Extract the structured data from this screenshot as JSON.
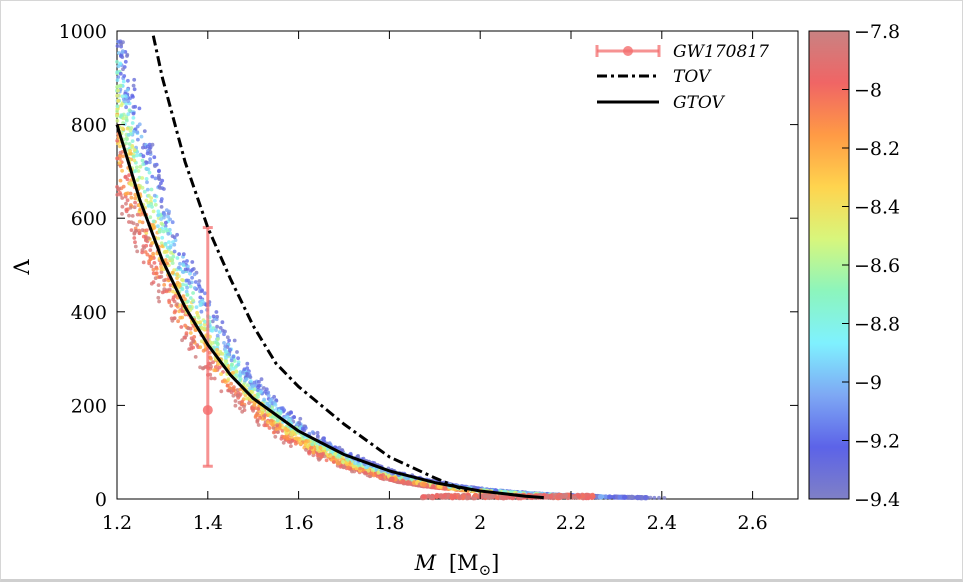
{
  "chart_data": {
    "type": "scatter",
    "title": "",
    "xlabel": "M [M⊙]",
    "xlabel_italic": "M",
    "xlabel_rest": "[M",
    "xlabel_close": "]",
    "xlabel_sub": "⊙",
    "ylabel": "Λ",
    "xlim": [
      1.2,
      2.7
    ],
    "ylim": [
      0,
      1000
    ],
    "xticks": [
      "1.2",
      "1.4",
      "1.6",
      "1.8",
      "2",
      "2.2",
      "2.4",
      "2.6"
    ],
    "yticks": [
      "0",
      "200",
      "400",
      "600",
      "800",
      "1000"
    ],
    "colorbar": {
      "range": [
        -9.4,
        -7.8
      ],
      "ticks": [
        "−7.8",
        "−8",
        "−8.2",
        "−8.4",
        "−8.6",
        "−8.8",
        "−9",
        "−9.2",
        "−9.4"
      ],
      "colors": [
        "#7f80c6",
        "#5c63e8",
        "#7ea8f4",
        "#7ff1ff",
        "#8cf5bd",
        "#d8f67c",
        "#ffd44e",
        "#ff9a45",
        "#f06565",
        "#c98282"
      ]
    },
    "legend": {
      "position": "top-right",
      "entries": [
        "GW170817",
        "TOV",
        "GTOV"
      ]
    },
    "gw170817": {
      "M": 1.4,
      "Lambda": 190,
      "err_low": 70,
      "err_high": 580,
      "color": "#f46e6e"
    },
    "tov": {
      "x": [
        1.28,
        1.3,
        1.35,
        1.4,
        1.45,
        1.5,
        1.55,
        1.6,
        1.7,
        1.8,
        1.9,
        1.95,
        1.98
      ],
      "y": [
        990,
        900,
        720,
        580,
        470,
        370,
        290,
        240,
        160,
        90,
        45,
        25,
        15
      ]
    },
    "gtov": {
      "x": [
        1.2,
        1.25,
        1.3,
        1.35,
        1.4,
        1.45,
        1.5,
        1.6,
        1.7,
        1.8,
        1.9,
        2.0,
        2.1,
        2.14
      ],
      "y": [
        800,
        640,
        510,
        410,
        330,
        265,
        215,
        145,
        95,
        60,
        35,
        17,
        6,
        3
      ]
    },
    "scatter_band": {
      "color_min": -9.4,
      "color_max": -7.8,
      "endpoints_M": [
        1.87,
        2.41
      ],
      "note": "dense cloud of points below and above the GTOV curve"
    }
  }
}
